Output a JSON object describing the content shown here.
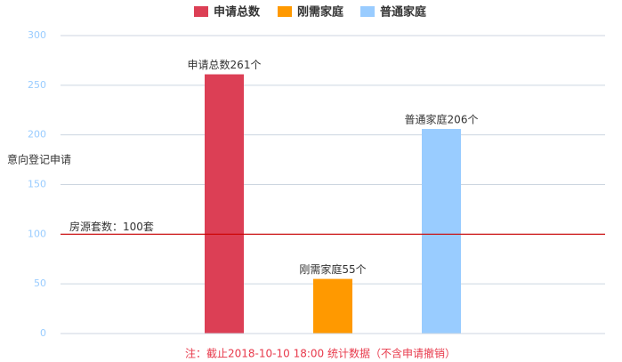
{
  "chart_data": {
    "type": "bar",
    "categories": [
      null
    ],
    "series": [
      {
        "name": "申请总数",
        "color": "#dc3f55",
        "values": [
          261
        ],
        "value_labels": [
          "申请总数261个"
        ]
      },
      {
        "name": "刚需家庭",
        "color": "#ff9900",
        "values": [
          55
        ],
        "value_labels": [
          "刚需家庭55个"
        ]
      },
      {
        "name": "普通家庭",
        "color": "#99ccff",
        "values": [
          206
        ],
        "value_labels": [
          "普通家庭206个"
        ]
      }
    ],
    "y_label": "意向登记申请",
    "ylim": [
      0,
      300
    ],
    "yticks": [
      0,
      50,
      100,
      150,
      200,
      250,
      300
    ],
    "grid": true,
    "mark_line": {
      "value": 100,
      "label": "房源套数：100套",
      "color": "#cc0000"
    },
    "note": "注：截止2018-10-10 18:00 统计数据（不含申请撤销）"
  }
}
